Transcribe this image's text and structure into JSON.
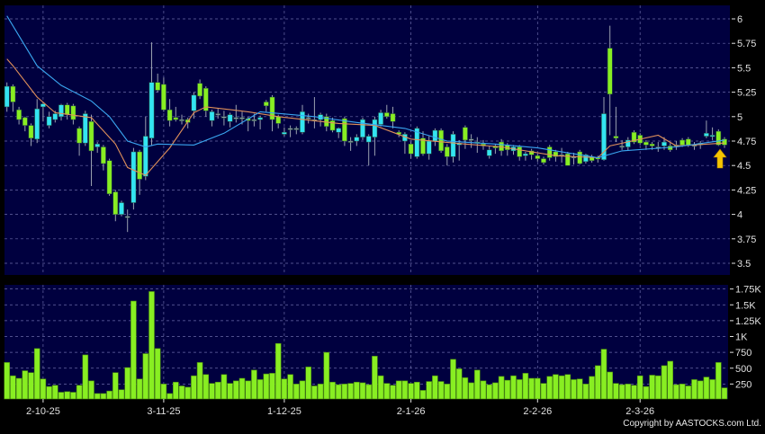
{
  "copyright": "Copyright by AASTOCKS.com Ltd.",
  "colors": {
    "panel_bg": "#00003f",
    "grid": "#6a6aa8",
    "up_candle": "#33e4f2",
    "down_candle": "#88ee22",
    "doji": "#9aa0b0",
    "volume_bar": "#88ee22",
    "ma_short": "#e0905a",
    "ma_long": "#3aa6f0",
    "arrow": "#f5c400",
    "axis_text": "#e0e0e0"
  },
  "chart_data": [
    {
      "type": "candlestick",
      "title": "",
      "ylim": [
        3.4,
        6.13
      ],
      "yticks": [
        "3.5",
        "3.75",
        "4",
        "4.25",
        "4.5",
        "4.75",
        "5",
        "5.25",
        "5.5",
        "5.75",
        "6"
      ],
      "grid": true,
      "x_tick_labels": [
        {
          "index": 6,
          "label": "2-10-25"
        },
        {
          "index": 26,
          "label": "3-11-25"
        },
        {
          "index": 46,
          "label": "1-12-25"
        },
        {
          "index": 67,
          "label": "2-1-26"
        },
        {
          "index": 88,
          "label": "2-2-26"
        },
        {
          "index": 105,
          "label": "2-3-26"
        }
      ],
      "ohlc": [
        [
          5.1,
          5.35,
          5.05,
          5.31
        ],
        [
          5.31,
          5.33,
          5.05,
          5.15
        ],
        [
          5.07,
          5.1,
          4.92,
          4.97
        ],
        [
          4.99,
          5.0,
          4.85,
          4.91
        ],
        [
          4.91,
          4.93,
          4.7,
          4.78
        ],
        [
          4.77,
          5.18,
          4.73,
          5.08
        ],
        [
          5.1,
          5.15,
          4.95,
          5.13
        ],
        [
          4.91,
          5.05,
          4.88,
          5.0
        ],
        [
          4.97,
          5.06,
          4.94,
          5.03
        ],
        [
          5.0,
          5.13,
          4.96,
          5.12
        ],
        [
          5.12,
          5.14,
          4.97,
          5.02
        ],
        [
          5.11,
          5.13,
          4.92,
          4.97
        ],
        [
          4.88,
          4.9,
          4.6,
          4.73
        ],
        [
          4.73,
          5.06,
          4.7,
          5.03
        ],
        [
          4.95,
          5.02,
          4.29,
          4.65
        ],
        [
          4.69,
          4.74,
          4.63,
          4.72
        ],
        [
          4.69,
          4.71,
          4.45,
          4.52
        ],
        [
          4.55,
          4.57,
          4.19,
          4.21
        ],
        [
          4.23,
          4.25,
          3.93,
          4.0
        ],
        [
          4.0,
          4.14,
          3.98,
          4.12
        ],
        [
          3.98,
          4.05,
          3.82,
          3.98
        ],
        [
          4.12,
          4.68,
          4.05,
          4.64
        ],
        [
          4.64,
          4.66,
          4.2,
          4.36
        ],
        [
          4.39,
          5.0,
          4.35,
          4.8
        ],
        [
          4.78,
          5.76,
          4.7,
          5.35
        ],
        [
          5.35,
          5.44,
          5.25,
          5.27
        ],
        [
          5.33,
          5.4,
          5.05,
          5.07
        ],
        [
          5.07,
          5.18,
          4.9,
          4.96
        ],
        [
          4.99,
          5.1,
          4.95,
          4.97
        ],
        [
          4.97,
          5.02,
          4.92,
          4.97
        ],
        [
          4.97,
          4.99,
          4.88,
          4.94
        ],
        [
          5.06,
          5.25,
          4.98,
          5.22
        ],
        [
          5.34,
          5.38,
          5.18,
          5.21
        ],
        [
          5.29,
          5.31,
          5.0,
          5.06
        ],
        [
          4.96,
          5.07,
          4.9,
          5.05
        ],
        [
          5.03,
          5.08,
          4.98,
          5.03
        ],
        [
          5.0,
          5.06,
          4.91,
          5.0
        ],
        [
          4.95,
          5.04,
          4.89,
          5.02
        ],
        [
          4.99,
          5.12,
          4.94,
          4.99
        ],
        [
          4.99,
          5.05,
          4.92,
          4.99
        ],
        [
          4.98,
          5.0,
          4.85,
          4.96
        ],
        [
          4.97,
          5.03,
          4.9,
          4.97
        ],
        [
          4.97,
          5.01,
          4.87,
          4.99
        ],
        [
          5.15,
          5.17,
          5.05,
          5.11
        ],
        [
          5.2,
          5.22,
          4.85,
          4.97
        ],
        [
          5.0,
          5.02,
          4.88,
          4.93
        ],
        [
          4.82,
          4.89,
          4.8,
          4.84
        ],
        [
          4.88,
          4.91,
          4.79,
          4.88
        ],
        [
          4.88,
          4.9,
          4.82,
          4.88
        ],
        [
          4.84,
          5.12,
          4.82,
          5.05
        ],
        [
          4.99,
          5.03,
          4.93,
          4.99
        ],
        [
          4.97,
          5.2,
          4.88,
          4.97
        ],
        [
          4.97,
          5.04,
          4.9,
          5.02
        ],
        [
          5.0,
          5.03,
          4.85,
          4.9
        ],
        [
          4.96,
          4.99,
          4.84,
          4.86
        ],
        [
          4.84,
          4.89,
          4.78,
          4.88
        ],
        [
          4.98,
          5.0,
          4.7,
          4.75
        ],
        [
          4.75,
          4.79,
          4.65,
          4.75
        ],
        [
          4.75,
          4.82,
          4.7,
          4.79
        ],
        [
          4.79,
          4.99,
          4.76,
          4.97
        ],
        [
          4.74,
          4.82,
          4.5,
          4.8
        ],
        [
          4.79,
          5.0,
          4.6,
          4.97
        ],
        [
          4.92,
          5.07,
          4.9,
          5.04
        ],
        [
          5.04,
          5.12,
          4.98,
          5.0
        ],
        [
          5.03,
          5.1,
          4.88,
          4.95
        ],
        [
          4.84,
          4.86,
          4.79,
          4.82
        ],
        [
          4.75,
          4.84,
          4.62,
          4.82
        ],
        [
          4.72,
          4.74,
          4.57,
          4.62
        ],
        [
          4.59,
          4.9,
          4.57,
          4.88
        ],
        [
          4.78,
          4.85,
          4.6,
          4.62
        ],
        [
          4.62,
          4.8,
          4.56,
          4.75
        ],
        [
          4.75,
          4.88,
          4.7,
          4.86
        ],
        [
          4.86,
          4.88,
          4.63,
          4.65
        ],
        [
          4.69,
          4.72,
          4.5,
          4.59
        ],
        [
          4.59,
          4.85,
          4.53,
          4.82
        ],
        [
          4.71,
          4.76,
          4.55,
          4.73
        ],
        [
          4.89,
          4.91,
          4.67,
          4.76
        ],
        [
          4.77,
          4.82,
          4.68,
          4.77
        ],
        [
          4.74,
          4.79,
          4.63,
          4.73
        ],
        [
          4.72,
          4.76,
          4.66,
          4.7
        ],
        [
          4.6,
          4.7,
          4.57,
          4.66
        ],
        [
          4.7,
          4.72,
          4.62,
          4.68
        ],
        [
          4.74,
          4.77,
          4.6,
          4.65
        ],
        [
          4.71,
          4.73,
          4.6,
          4.66
        ],
        [
          4.65,
          4.71,
          4.61,
          4.69
        ],
        [
          4.69,
          4.71,
          4.55,
          4.59
        ],
        [
          4.6,
          4.64,
          4.55,
          4.62
        ],
        [
          4.65,
          4.67,
          4.56,
          4.61
        ],
        [
          4.6,
          4.62,
          4.54,
          4.57
        ],
        [
          4.57,
          4.59,
          4.51,
          4.53
        ],
        [
          4.69,
          4.71,
          4.55,
          4.58
        ],
        [
          4.64,
          4.66,
          4.54,
          4.59
        ],
        [
          4.61,
          4.68,
          4.53,
          4.61
        ],
        [
          4.62,
          4.64,
          4.5,
          4.5
        ],
        [
          4.59,
          4.63,
          4.51,
          4.59
        ],
        [
          4.64,
          4.66,
          4.51,
          4.52
        ],
        [
          4.54,
          4.62,
          4.52,
          4.61
        ],
        [
          4.59,
          4.61,
          4.53,
          4.55
        ],
        [
          4.58,
          4.6,
          4.53,
          4.57
        ],
        [
          4.56,
          5.2,
          4.55,
          5.03
        ],
        [
          5.7,
          5.93,
          4.81,
          5.23
        ],
        [
          4.8,
          5.1,
          4.74,
          4.78
        ],
        [
          4.7,
          4.76,
          4.66,
          4.7
        ],
        [
          4.69,
          4.79,
          4.65,
          4.76
        ],
        [
          4.84,
          4.86,
          4.72,
          4.74
        ],
        [
          4.81,
          4.83,
          4.71,
          4.73
        ],
        [
          4.74,
          4.76,
          4.66,
          4.71
        ],
        [
          4.72,
          4.74,
          4.66,
          4.7
        ],
        [
          4.69,
          4.74,
          4.64,
          4.69
        ],
        [
          4.7,
          4.79,
          4.66,
          4.74
        ],
        [
          4.7,
          4.73,
          4.64,
          4.66
        ],
        [
          4.71,
          4.75,
          4.66,
          4.71
        ],
        [
          4.76,
          4.78,
          4.69,
          4.71
        ],
        [
          4.77,
          4.79,
          4.69,
          4.71
        ],
        [
          4.71,
          4.74,
          4.66,
          4.71
        ],
        [
          4.71,
          4.75,
          4.67,
          4.73
        ],
        [
          4.8,
          4.96,
          4.78,
          4.83
        ],
        [
          4.8,
          4.89,
          4.76,
          4.81
        ],
        [
          4.85,
          4.87,
          4.7,
          4.71
        ],
        [
          4.77,
          4.79,
          4.68,
          4.71
        ]
      ],
      "moving_averages": [
        {
          "style": "short",
          "points": [
            [
              0,
              5.59
            ],
            [
              1,
              5.52
            ],
            [
              5,
              5.2
            ],
            [
              8,
              5.04
            ],
            [
              14,
              4.99
            ],
            [
              18,
              4.72
            ],
            [
              20,
              4.48
            ],
            [
              23,
              4.4
            ],
            [
              27,
              4.68
            ],
            [
              31,
              5.04
            ],
            [
              33,
              5.1
            ],
            [
              40,
              5.05
            ],
            [
              45,
              5.0
            ],
            [
              55,
              4.93
            ],
            [
              61,
              4.91
            ],
            [
              67,
              4.77
            ],
            [
              76,
              4.72
            ],
            [
              82,
              4.69
            ],
            [
              91,
              4.6
            ],
            [
              98,
              4.58
            ],
            [
              100,
              4.7
            ],
            [
              108,
              4.81
            ],
            [
              111,
              4.7
            ],
            [
              119,
              4.73
            ]
          ]
        },
        {
          "style": "long",
          "points": [
            [
              0,
              6.03
            ],
            [
              5,
              5.52
            ],
            [
              9,
              5.32
            ],
            [
              14,
              5.16
            ],
            [
              17,
              5.0
            ],
            [
              20,
              4.75
            ],
            [
              23,
              4.69
            ],
            [
              25,
              4.72
            ],
            [
              31,
              4.71
            ],
            [
              36,
              4.83
            ],
            [
              42,
              5.05
            ],
            [
              51,
              5.0
            ],
            [
              58,
              4.94
            ],
            [
              66,
              4.88
            ],
            [
              73,
              4.75
            ],
            [
              81,
              4.72
            ],
            [
              88,
              4.68
            ],
            [
              98,
              4.58
            ],
            [
              102,
              4.65
            ],
            [
              111,
              4.69
            ],
            [
              119,
              4.76
            ]
          ]
        }
      ],
      "marker": {
        "type": "up-arrow",
        "index": 119
      }
    },
    {
      "type": "bar",
      "title": "",
      "ylim": [
        0,
        1820
      ],
      "yticks": [
        {
          "value": 250,
          "label": "250"
        },
        {
          "value": 500,
          "label": "500"
        },
        {
          "value": 750,
          "label": "750"
        },
        {
          "value": 1000,
          "label": "1K"
        },
        {
          "value": 1250,
          "label": "1.25K"
        },
        {
          "value": 1500,
          "label": "1.5K"
        },
        {
          "value": 1750,
          "label": "1.75K"
        }
      ],
      "grid": true,
      "values": [
        590,
        380,
        340,
        460,
        430,
        810,
        330,
        210,
        230,
        120,
        130,
        120,
        230,
        710,
        300,
        100,
        100,
        140,
        430,
        160,
        510,
        1560,
        330,
        730,
        1710,
        810,
        250,
        100,
        280,
        220,
        200,
        380,
        590,
        400,
        260,
        280,
        400,
        260,
        300,
        340,
        300,
        470,
        320,
        410,
        420,
        890,
        330,
        400,
        250,
        300,
        520,
        220,
        250,
        750,
        280,
        240,
        250,
        260,
        280,
        270,
        240,
        690,
        380,
        260,
        230,
        300,
        300,
        260,
        280,
        150,
        290,
        380,
        290,
        250,
        640,
        490,
        350,
        270,
        470,
        300,
        240,
        270,
        370,
        310,
        380,
        320,
        420,
        340,
        340,
        260,
        370,
        400,
        380,
        400,
        320,
        330,
        250,
        370,
        540,
        800,
        440,
        260,
        240,
        250,
        230,
        380,
        210,
        390,
        380,
        540,
        610,
        240,
        250,
        220,
        320,
        300,
        360,
        320,
        590,
        190
      ]
    }
  ]
}
